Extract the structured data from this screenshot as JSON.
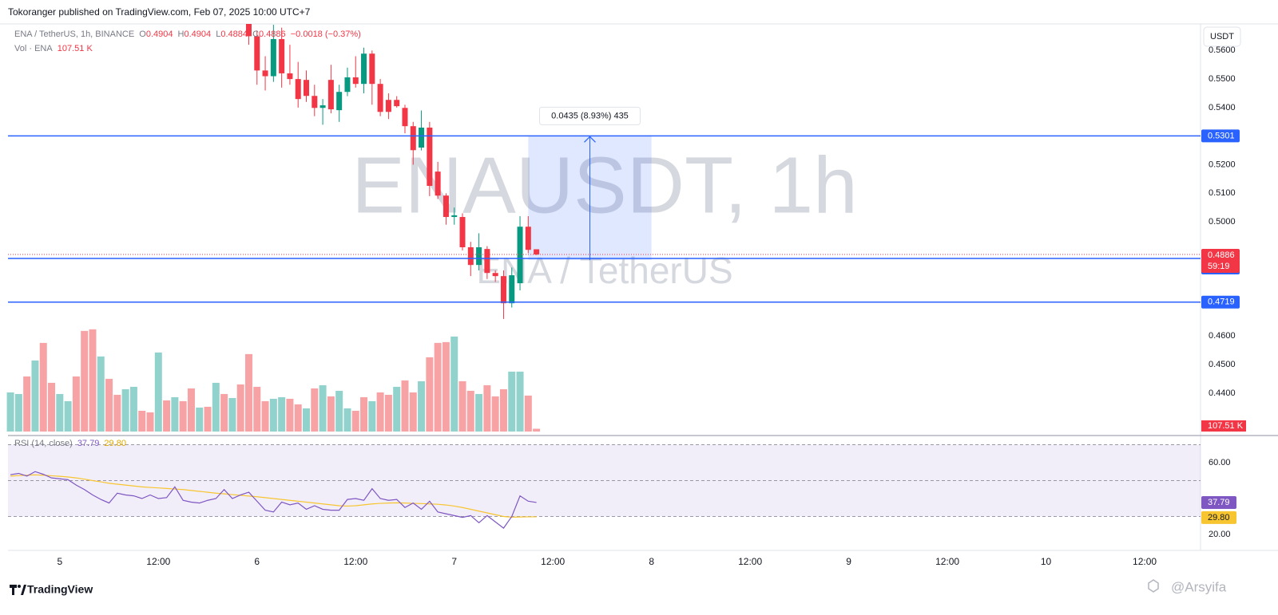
{
  "header": {
    "text": "Tokoranger published on TradingView.com, Feb 07, 2025 10:00 UTC+7"
  },
  "footer": {
    "brand": "TradingView",
    "watermark": "@Arsyifa"
  },
  "chart_data": [
    {
      "type": "candlestick",
      "title": "ENA / TetherUS, 1h, BINANCE",
      "legend_keys": [
        "O",
        "H",
        "L",
        "C"
      ],
      "change": "−0.0018 (−0.37%)",
      "watermark": "ENAUSDT, 1h",
      "watermark_subtitle": "ENA / TetherUS",
      "currency": "USDT",
      "countdown": "59:19",
      "x": [
        23,
        24,
        25,
        26,
        27,
        28,
        29,
        30,
        31,
        32,
        33,
        34,
        35,
        36,
        37,
        38,
        39,
        40,
        41,
        42,
        43,
        44,
        45,
        46,
        47,
        48,
        49,
        50,
        51,
        52,
        53,
        54,
        55,
        56,
        57,
        58
      ],
      "open": [
        0.57,
        0.565,
        0.553,
        0.551,
        0.564,
        0.552,
        0.55,
        0.5497,
        0.5441,
        0.5399,
        0.5497,
        0.5391,
        0.5455,
        0.5506,
        0.5483,
        0.5589,
        0.5483,
        0.5427,
        0.5427,
        0.5399,
        0.5335,
        0.526,
        0.533,
        0.5176,
        0.5092,
        0.5017,
        0.5017,
        0.4911,
        0.4849,
        0.4905,
        0.4821,
        0.481,
        0.4715,
        0.4785,
        0.4983,
        0.4904
      ],
      "high": [
        0.573,
        0.567,
        0.558,
        0.569,
        0.568,
        0.562,
        0.556,
        0.553,
        0.548,
        0.543,
        0.555,
        0.548,
        0.554,
        0.558,
        0.561,
        0.56,
        0.55,
        0.545,
        0.544,
        0.541,
        0.535,
        0.539,
        0.535,
        0.521,
        0.51,
        0.505,
        0.503,
        0.493,
        0.496,
        0.4915,
        0.483,
        0.483,
        0.484,
        0.502,
        0.502,
        0.4904
      ],
      "low": [
        0.562,
        0.548,
        0.546,
        0.549,
        0.547,
        0.548,
        0.54,
        0.542,
        0.537,
        0.534,
        0.538,
        0.535,
        0.544,
        0.547,
        0.545,
        0.541,
        0.537,
        0.536,
        0.54,
        0.531,
        0.52,
        0.525,
        0.509,
        0.508,
        0.499,
        0.499,
        0.49,
        0.481,
        0.483,
        0.48,
        0.479,
        0.466,
        0.47,
        0.476,
        0.489,
        0.4884
      ],
      "close": [
        0.565,
        0.553,
        0.551,
        0.564,
        0.552,
        0.55,
        0.543,
        0.5441,
        0.5399,
        0.5408,
        0.5394,
        0.5455,
        0.5506,
        0.5483,
        0.5589,
        0.5483,
        0.5385,
        0.5385,
        0.5405,
        0.5335,
        0.5251,
        0.533,
        0.5126,
        0.5092,
        0.5017,
        0.5023,
        0.4911,
        0.4849,
        0.4911,
        0.4821,
        0.481,
        0.4715,
        0.4813,
        0.4983,
        0.4902,
        0.4886
      ],
      "up_color": "#089981",
      "down_color": "#f23645",
      "xlim": [
        -6.3,
        138.8
      ],
      "ylim": [
        0.4263,
        0.5693
      ],
      "yticks": [
        {
          "value": 0.56,
          "label": "0.5600"
        },
        {
          "value": 0.55,
          "label": "0.5500"
        },
        {
          "value": 0.54,
          "label": "0.5400"
        },
        {
          "value": 0.52,
          "label": "0.5200"
        },
        {
          "value": 0.51,
          "label": "0.5100"
        },
        {
          "value": 0.5,
          "label": "0.5000"
        },
        {
          "value": 0.46,
          "label": "0.4600"
        },
        {
          "value": 0.45,
          "label": "0.4500"
        },
        {
          "value": 0.44,
          "label": "0.4400"
        }
      ],
      "hlines": [
        0.5301,
        0.4872,
        0.4719
      ],
      "hline_color": "#2962ff",
      "measure": {
        "from": 0.4866,
        "to": 0.5301,
        "x": [
          57,
          72
        ],
        "label": "0.0435 (8.93%) 435"
      }
    },
    {
      "type": "volume",
      "title": "Vol · ENA",
      "last_value_label": "107.51 K",
      "x": [
        -6,
        -5,
        -4,
        -3,
        -2,
        -1,
        0,
        1,
        2,
        3,
        4,
        5,
        6,
        7,
        8,
        9,
        10,
        11,
        12,
        13,
        14,
        15,
        16,
        17,
        18,
        19,
        20,
        21,
        22,
        23,
        24,
        25,
        26,
        27,
        28,
        29,
        30,
        31,
        32,
        33,
        34,
        35,
        36,
        37,
        38,
        39,
        40,
        41,
        42,
        43,
        44,
        45,
        46,
        47,
        48,
        49,
        50,
        51,
        52,
        53,
        54,
        55,
        56,
        57,
        58
      ],
      "values": [
        1504,
        1443,
        2118,
        2732,
        3408,
        1873,
        1443,
        1167,
        2118,
        3868,
        3930,
        2886,
        2026,
        1412,
        1627,
        1719,
        798,
        737,
        3039,
        1197,
        1320,
        1167,
        1658,
        921,
        952,
        1873,
        1443,
        1289,
        1811,
        2978,
        1719,
        1167,
        1259,
        1320,
        1259,
        1044,
        890,
        1658,
        1781,
        1351,
        1566,
        890,
        798,
        1320,
        1167,
        1504,
        1412,
        1719,
        1965,
        1504,
        1934,
        2855,
        3408,
        3438,
        3653,
        1934,
        1566,
        1443,
        1781,
        1351,
        1627,
        2303,
        2303,
        1382,
        107.51
      ],
      "colors": [
        "#92d2cc",
        "#92d2cc",
        "#f7a3a5",
        "#92d2cc",
        "#f7a3a5",
        "#f7a3a5",
        "#92d2cc",
        "#92d2cc",
        "#f7a3a5",
        "#f7a3a5",
        "#f7a3a5",
        "#92d2cc",
        "#f7a3a5",
        "#f7a3a5",
        "#92d2cc",
        "#92d2cc",
        "#f7a3a5",
        "#f7a3a5",
        "#92d2cc",
        "#f7a3a5",
        "#92d2cc",
        "#f7a3a5",
        "#f7a3a5",
        "#92d2cc",
        "#f7a3a5",
        "#92d2cc",
        "#f7a3a5",
        "#92d2cc",
        "#f7a3a5",
        "#f7a3a5",
        "#f7a3a5",
        "#f7a3a5",
        "#92d2cc",
        "#92d2cc",
        "#f7a3a5",
        "#f7a3a5",
        "#92d2cc",
        "#f7a3a5",
        "#92d2cc",
        "#f7a3a5",
        "#92d2cc",
        "#92d2cc",
        "#f7a3a5",
        "#f7a3a5",
        "#92d2cc",
        "#f7a3a5",
        "#f7a3a5",
        "#92d2cc",
        "#f7a3a5",
        "#f7a3a5",
        "#92d2cc",
        "#f7a3a5",
        "#f7a3a5",
        "#f7a3a5",
        "#92d2cc",
        "#f7a3a5",
        "#f7a3a5",
        "#92d2cc",
        "#f7a3a5",
        "#f7a3a5",
        "#f7a3a5",
        "#92d2cc",
        "#92d2cc",
        "#f7a3a5",
        "#f7a3a5"
      ],
      "label_color": "#f23645",
      "xlim": [
        -6.3,
        138.8
      ],
      "ylim": [
        0,
        4600
      ]
    },
    {
      "type": "line",
      "title": "RSI (14, close)",
      "x": [
        -6,
        -5,
        -4,
        -3,
        -2,
        -1,
        0,
        1,
        2,
        3,
        4,
        5,
        6,
        7,
        8,
        9,
        10,
        11,
        12,
        13,
        14,
        15,
        16,
        17,
        18,
        19,
        20,
        21,
        22,
        23,
        24,
        25,
        26,
        27,
        28,
        29,
        30,
        31,
        32,
        33,
        34,
        35,
        36,
        37,
        38,
        39,
        40,
        41,
        42,
        43,
        44,
        45,
        46,
        47,
        48,
        49,
        50,
        51,
        52,
        53,
        54,
        55,
        56,
        57,
        58
      ],
      "series": [
        {
          "color": "#7e57c2",
          "values": [
            53.3,
            54.0,
            52.5,
            55.0,
            53.5,
            51.5,
            51.0,
            50.5,
            47.5,
            45.0,
            42.0,
            39.5,
            37.5,
            43.0,
            42.0,
            41.5,
            40.0,
            42.0,
            40.0,
            40.5,
            46.5,
            39.0,
            38.0,
            37.5,
            39.0,
            40.0,
            45.0,
            40.0,
            42.0,
            43.5,
            38.5,
            33.5,
            32.5,
            38.0,
            36.5,
            37.5,
            34.0,
            36.0,
            34.0,
            33.5,
            33.5,
            39.5,
            40.0,
            39.0,
            45.5,
            40.0,
            39.0,
            39.5,
            35.0,
            37.5,
            34.0,
            38.5,
            32.5,
            31.5,
            30.5,
            29.5,
            30.5,
            26.5,
            30.5,
            27.0,
            23.5,
            30.0,
            41.5,
            38.5,
            37.79
          ]
        },
        {
          "color": "#f7c530",
          "last_value_label": "29.80",
          "values": [
            52.5,
            52.8,
            53.0,
            53.2,
            53.0,
            52.7,
            52.4,
            52.0,
            51.5,
            50.8,
            50.0,
            49.3,
            48.5,
            48.0,
            47.5,
            47.0,
            46.5,
            46.2,
            45.9,
            45.6,
            45.3,
            45.0,
            44.5,
            44.0,
            43.5,
            43.0,
            42.6,
            42.2,
            41.8,
            41.4,
            41.0,
            40.5,
            40.0,
            39.5,
            39.0,
            38.5,
            38.0,
            37.5,
            37.0,
            36.5,
            36.0,
            35.8,
            36.0,
            36.5,
            37.0,
            37.3,
            37.5,
            37.6,
            37.5,
            37.3,
            37.2,
            37.0,
            36.8,
            36.4,
            35.8,
            35.0,
            34.0,
            33.0,
            32.0,
            31.0,
            30.0,
            29.6,
            29.7,
            29.8,
            29.8
          ]
        }
      ],
      "levels": [
        70,
        50,
        30
      ],
      "xlim": [
        -6.3,
        138.8
      ],
      "ylim": [
        11.1,
        72
      ],
      "yticks": [
        {
          "value": 60,
          "label": "60.00"
        },
        {
          "value": 20,
          "label": "20.00"
        }
      ],
      "xticks": [
        {
          "value": 0,
          "label": "5"
        },
        {
          "value": 12,
          "label": "12:00"
        },
        {
          "value": 24,
          "label": "6"
        },
        {
          "value": 36,
          "label": "12:00"
        },
        {
          "value": 48,
          "label": "7"
        },
        {
          "value": 60,
          "label": "12:00"
        },
        {
          "value": 72,
          "label": "8"
        },
        {
          "value": 84,
          "label": "12:00"
        },
        {
          "value": 96,
          "label": "9"
        },
        {
          "value": 108,
          "label": "12:00"
        },
        {
          "value": 120,
          "label": "10"
        },
        {
          "value": 132,
          "label": "12:00"
        }
      ]
    }
  ]
}
